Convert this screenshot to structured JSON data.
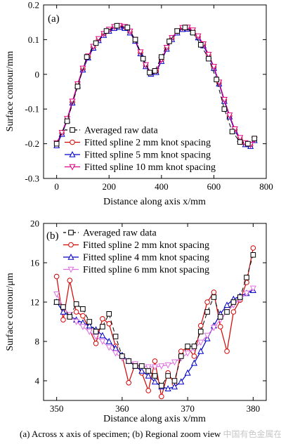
{
  "caption": "(a)  Across  x  axis  of  specimen; (b) Regional zoom view",
  "watermark": "中国有色金属在线",
  "chart_data": [
    {
      "type": "line",
      "panel_label": "(a)",
      "xlabel": "Distance along axis x/mm",
      "ylabel": "Surface contour/mm",
      "xlim": [
        -50,
        800
      ],
      "ylim": [
        -0.3,
        0.2
      ],
      "xticks": [
        "0",
        "200",
        "400",
        "600",
        "800"
      ],
      "xtick_values": [
        0,
        200,
        400,
        600,
        800
      ],
      "yticks": [
        "-0.3",
        "-0.2",
        "-0.1",
        "0",
        "0.1",
        "0.2"
      ],
      "ytick_values": [
        -0.3,
        -0.2,
        -0.1,
        0,
        0.1,
        0.2
      ],
      "legend_position": "bottom-left",
      "series": [
        {
          "name": "Averaged raw data",
          "color": "#000000",
          "dash": "6,4",
          "marker": "square",
          "x": [
            0,
            40,
            80,
            115,
            150,
            190,
            230,
            270,
            300,
            330,
            355,
            375,
            400,
            430,
            460,
            490,
            520,
            550,
            580,
            610,
            640,
            670,
            700,
            730,
            755
          ],
          "y": [
            -0.2,
            -0.135,
            -0.035,
            0.05,
            0.09,
            0.125,
            0.14,
            0.135,
            0.1,
            0.045,
            0.005,
            0.01,
            0.05,
            0.095,
            0.125,
            0.135,
            0.12,
            0.085,
            0.045,
            -0.015,
            -0.1,
            -0.165,
            -0.195,
            -0.2,
            -0.185
          ]
        },
        {
          "name": "Fitted spline 2 mm knot spacing",
          "color": "#d40000",
          "marker": "circle",
          "x": [
            0,
            20,
            40,
            60,
            80,
            100,
            120,
            140,
            160,
            180,
            200,
            220,
            240,
            260,
            280,
            300,
            320,
            340,
            360,
            380,
            400,
            420,
            440,
            460,
            480,
            500,
            520,
            540,
            560,
            580,
            600,
            620,
            640,
            660,
            680,
            700,
            720,
            740,
            755
          ],
          "y": [
            -0.2,
            -0.17,
            -0.13,
            -0.08,
            -0.03,
            0.015,
            0.05,
            0.078,
            0.1,
            0.115,
            0.127,
            0.135,
            0.138,
            0.135,
            0.122,
            0.098,
            0.062,
            0.025,
            0.003,
            0.008,
            0.04,
            0.075,
            0.103,
            0.122,
            0.132,
            0.133,
            0.125,
            0.108,
            0.085,
            0.055,
            0.02,
            -0.025,
            -0.075,
            -0.12,
            -0.16,
            -0.185,
            -0.2,
            -0.205,
            -0.19
          ]
        },
        {
          "name": "Fitted spline 5 mm knot spacing",
          "color": "#0000c8",
          "marker": "triangle-up",
          "x": [
            0,
            20,
            40,
            60,
            80,
            100,
            120,
            140,
            160,
            180,
            200,
            220,
            240,
            260,
            280,
            300,
            320,
            340,
            360,
            380,
            400,
            420,
            440,
            460,
            480,
            500,
            520,
            540,
            560,
            580,
            600,
            620,
            640,
            660,
            680,
            700,
            720,
            740,
            755
          ],
          "y": [
            -0.205,
            -0.172,
            -0.132,
            -0.082,
            -0.032,
            0.013,
            0.048,
            0.076,
            0.098,
            0.113,
            0.125,
            0.133,
            0.136,
            0.133,
            0.12,
            0.096,
            0.06,
            0.023,
            0.001,
            0.006,
            0.038,
            0.073,
            0.101,
            0.12,
            0.13,
            0.131,
            0.123,
            0.106,
            0.083,
            0.053,
            0.018,
            -0.027,
            -0.077,
            -0.122,
            -0.162,
            -0.187,
            -0.202,
            -0.207,
            -0.19
          ]
        },
        {
          "name": "Fitted spline 10 mm knot spacing",
          "color": "#e0007e",
          "marker": "triangle-down",
          "x": [
            0,
            20,
            40,
            60,
            80,
            100,
            120,
            140,
            160,
            180,
            200,
            220,
            240,
            260,
            280,
            300,
            320,
            340,
            360,
            380,
            400,
            420,
            440,
            460,
            480,
            500,
            520,
            540,
            560,
            580,
            600,
            620,
            640,
            660,
            680,
            700,
            720,
            740,
            755
          ],
          "y": [
            -0.198,
            -0.168,
            -0.128,
            -0.078,
            -0.028,
            0.017,
            0.052,
            0.08,
            0.102,
            0.117,
            0.129,
            0.137,
            0.14,
            0.137,
            0.124,
            0.1,
            0.064,
            0.027,
            0.005,
            0.01,
            0.042,
            0.077,
            0.105,
            0.124,
            0.134,
            0.135,
            0.127,
            0.11,
            0.087,
            0.057,
            0.022,
            -0.023,
            -0.073,
            -0.118,
            -0.158,
            -0.183,
            -0.198,
            -0.203,
            -0.188
          ]
        }
      ]
    },
    {
      "type": "line",
      "panel_label": "(b)",
      "xlabel": "Distance along axis x/mm",
      "ylabel": "Surface contour/μm",
      "xlim": [
        348,
        382
      ],
      "ylim": [
        2,
        20
      ],
      "xticks": [
        "350",
        "360",
        "370",
        "380"
      ],
      "xtick_values": [
        350,
        360,
        370,
        380
      ],
      "yticks": [
        "4",
        "8",
        "12",
        "16",
        "20"
      ],
      "ytick_values": [
        4,
        8,
        12,
        16,
        20
      ],
      "legend_position": "top-left",
      "series": [
        {
          "name": "Averaged raw data",
          "color": "#000000",
          "dash": "6,4",
          "marker": "square",
          "x": [
            350,
            351,
            352,
            353,
            354,
            355,
            356,
            357,
            358,
            359,
            360,
            361,
            362,
            363,
            364,
            365,
            366,
            367,
            368,
            369,
            370,
            371,
            372,
            373,
            374,
            375,
            376,
            377,
            378,
            379,
            380
          ],
          "y": [
            12.0,
            11.5,
            10.5,
            11.8,
            11.3,
            10.0,
            9.0,
            9.5,
            10.8,
            8.5,
            6.5,
            6.0,
            5.5,
            5.5,
            5.0,
            4.5,
            3.5,
            4.5,
            4.0,
            6.5,
            7.5,
            7.5,
            9.0,
            11.0,
            12.5,
            10.5,
            11.0,
            12.0,
            12.5,
            14.5,
            16.8
          ]
        },
        {
          "name": "Fitted spline 2 mm knot spacing",
          "color": "#d40000",
          "marker": "circle",
          "x": [
            350,
            351,
            352,
            353,
            354,
            355,
            356,
            357,
            358,
            359,
            360,
            361,
            362,
            363,
            364,
            365,
            366,
            367,
            368,
            369,
            370,
            371,
            372,
            373,
            374,
            375,
            376,
            377,
            378,
            379,
            380
          ],
          "y": [
            14.6,
            10.2,
            14.2,
            11.0,
            10.6,
            9.2,
            7.8,
            10.3,
            9.8,
            7.5,
            6.5,
            3.8,
            5.7,
            4.8,
            3.0,
            6.0,
            2.4,
            4.8,
            3.7,
            7.0,
            7.4,
            6.5,
            9.6,
            12.0,
            13.0,
            9.5,
            7.0,
            11.0,
            12.2,
            14.0,
            17.5
          ]
        },
        {
          "name": "Fitted spline 4 mm knot spacing",
          "color": "#0000c8",
          "marker": "triangle-up",
          "x": [
            350,
            351,
            352,
            353,
            354,
            355,
            356,
            357,
            358,
            359,
            360,
            361,
            362,
            363,
            364,
            365,
            366,
            367,
            368,
            369,
            370,
            371,
            372,
            373,
            374,
            375,
            376,
            377,
            378,
            379,
            380
          ],
          "y": [
            12.0,
            11.0,
            10.6,
            10.2,
            9.9,
            9.6,
            9.2,
            8.6,
            8.0,
            7.3,
            6.6,
            6.0,
            5.5,
            5.0,
            4.5,
            3.9,
            3.4,
            3.2,
            3.4,
            3.9,
            4.8,
            5.8,
            7.0,
            8.3,
            9.6,
            10.8,
            11.7,
            12.3,
            12.6,
            12.9,
            13.2
          ]
        },
        {
          "name": "Fitted spline 6 mm knot spacing",
          "color": "#e070e0",
          "marker": "triangle-down",
          "x": [
            350,
            351,
            352,
            353,
            354,
            355,
            356,
            357,
            358,
            359,
            360,
            361,
            362,
            363,
            364,
            365,
            366,
            367,
            368,
            369,
            370,
            371,
            372,
            373,
            374,
            375,
            376,
            377,
            378,
            379,
            380
          ],
          "y": [
            12.8,
            11.5,
            10.7,
            10.0,
            9.5,
            9.0,
            8.5,
            8.0,
            7.4,
            6.8,
            6.3,
            6.0,
            5.7,
            5.5,
            5.4,
            5.4,
            5.5,
            5.6,
            5.9,
            6.3,
            6.8,
            7.3,
            7.9,
            8.6,
            9.4,
            10.2,
            11.0,
            11.7,
            12.3,
            12.9,
            13.4
          ]
        }
      ]
    }
  ]
}
